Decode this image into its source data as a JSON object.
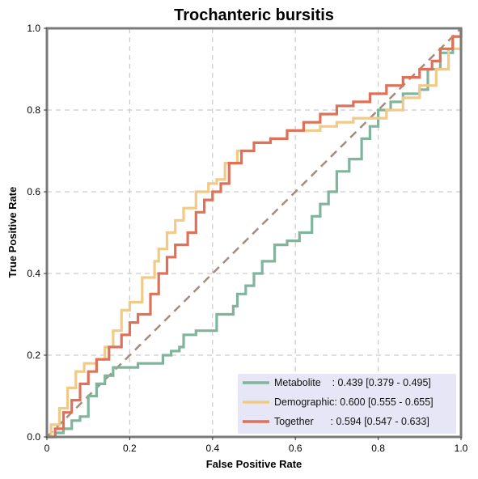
{
  "colors": {
    "metabolite": "#80b59c",
    "demographic": "#f0ca86",
    "together": "#df7158",
    "chance": "#a88a7c",
    "legend_bg": "#e6e6f6",
    "frame": "#7a7a7a",
    "grid": "#cccccc"
  },
  "chart_data": {
    "type": "line",
    "title": "Trochanteric bursitis",
    "xlabel": "False Positive Rate",
    "ylabel": "True Positive Rate",
    "xlim": [
      0,
      1
    ],
    "ylim": [
      0,
      1
    ],
    "xticks": [
      "0",
      "0.2",
      "0.4",
      "0.6",
      "0.8",
      "1.0"
    ],
    "yticks": [
      "0.0",
      "0.2",
      "0.4",
      "0.6",
      "0.8",
      "1.0"
    ],
    "grid": true,
    "legend_position": "bottom-right",
    "chance_line": [
      [
        0,
        0
      ],
      [
        1,
        1
      ]
    ],
    "series": [
      {
        "name": "Metabolite",
        "auc_label": "    : 0.439 [0.379 - 0.495]",
        "color_key": "metabolite",
        "points": [
          [
            0,
            0
          ],
          [
            0.02,
            0.01
          ],
          [
            0.04,
            0.02
          ],
          [
            0.06,
            0.04
          ],
          [
            0.08,
            0.05
          ],
          [
            0.1,
            0.1
          ],
          [
            0.12,
            0.13
          ],
          [
            0.14,
            0.15
          ],
          [
            0.16,
            0.17
          ],
          [
            0.2,
            0.17
          ],
          [
            0.22,
            0.18
          ],
          [
            0.26,
            0.18
          ],
          [
            0.28,
            0.2
          ],
          [
            0.3,
            0.21
          ],
          [
            0.32,
            0.22
          ],
          [
            0.33,
            0.25
          ],
          [
            0.36,
            0.26
          ],
          [
            0.4,
            0.26
          ],
          [
            0.41,
            0.3
          ],
          [
            0.45,
            0.32
          ],
          [
            0.46,
            0.35
          ],
          [
            0.48,
            0.37
          ],
          [
            0.5,
            0.4
          ],
          [
            0.52,
            0.43
          ],
          [
            0.55,
            0.47
          ],
          [
            0.58,
            0.48
          ],
          [
            0.61,
            0.5
          ],
          [
            0.64,
            0.54
          ],
          [
            0.66,
            0.57
          ],
          [
            0.68,
            0.6
          ],
          [
            0.7,
            0.65
          ],
          [
            0.73,
            0.68
          ],
          [
            0.76,
            0.73
          ],
          [
            0.78,
            0.76
          ],
          [
            0.8,
            0.8
          ],
          [
            0.83,
            0.82
          ],
          [
            0.86,
            0.84
          ],
          [
            0.9,
            0.85
          ],
          [
            0.92,
            0.9
          ],
          [
            0.95,
            0.94
          ],
          [
            0.98,
            0.98
          ],
          [
            1,
            1
          ]
        ]
      },
      {
        "name": "Demographic",
        "auc_label": ": 0.600 [0.555 - 0.655]",
        "color_key": "demographic",
        "points": [
          [
            0,
            0
          ],
          [
            0.01,
            0.03
          ],
          [
            0.03,
            0.07
          ],
          [
            0.05,
            0.12
          ],
          [
            0.07,
            0.16
          ],
          [
            0.09,
            0.18
          ],
          [
            0.12,
            0.19
          ],
          [
            0.14,
            0.22
          ],
          [
            0.16,
            0.26
          ],
          [
            0.18,
            0.31
          ],
          [
            0.2,
            0.33
          ],
          [
            0.23,
            0.39
          ],
          [
            0.26,
            0.43
          ],
          [
            0.27,
            0.46
          ],
          [
            0.29,
            0.5
          ],
          [
            0.31,
            0.53
          ],
          [
            0.33,
            0.56
          ],
          [
            0.36,
            0.6
          ],
          [
            0.39,
            0.62
          ],
          [
            0.41,
            0.63
          ],
          [
            0.43,
            0.67
          ],
          [
            0.46,
            0.7
          ],
          [
            0.5,
            0.72
          ],
          [
            0.54,
            0.73
          ],
          [
            0.58,
            0.75
          ],
          [
            0.62,
            0.75
          ],
          [
            0.66,
            0.76
          ],
          [
            0.7,
            0.77
          ],
          [
            0.74,
            0.78
          ],
          [
            0.78,
            0.78
          ],
          [
            0.82,
            0.8
          ],
          [
            0.86,
            0.83
          ],
          [
            0.9,
            0.86
          ],
          [
            0.94,
            0.9
          ],
          [
            0.97,
            0.95
          ],
          [
            1,
            1
          ]
        ]
      },
      {
        "name": "Together",
        "auc_label": "      : 0.594 [0.547 - 0.633]",
        "color_key": "together",
        "points": [
          [
            0,
            0
          ],
          [
            0.02,
            0.02
          ],
          [
            0.04,
            0.06
          ],
          [
            0.06,
            0.09
          ],
          [
            0.08,
            0.13
          ],
          [
            0.1,
            0.16
          ],
          [
            0.12,
            0.19
          ],
          [
            0.15,
            0.22
          ],
          [
            0.18,
            0.25
          ],
          [
            0.2,
            0.28
          ],
          [
            0.22,
            0.3
          ],
          [
            0.25,
            0.35
          ],
          [
            0.27,
            0.4
          ],
          [
            0.29,
            0.44
          ],
          [
            0.31,
            0.47
          ],
          [
            0.34,
            0.5
          ],
          [
            0.36,
            0.55
          ],
          [
            0.38,
            0.58
          ],
          [
            0.4,
            0.6
          ],
          [
            0.42,
            0.62
          ],
          [
            0.44,
            0.67
          ],
          [
            0.47,
            0.7
          ],
          [
            0.5,
            0.72
          ],
          [
            0.54,
            0.73
          ],
          [
            0.58,
            0.75
          ],
          [
            0.62,
            0.77
          ],
          [
            0.66,
            0.79
          ],
          [
            0.7,
            0.81
          ],
          [
            0.74,
            0.82
          ],
          [
            0.78,
            0.84
          ],
          [
            0.82,
            0.86
          ],
          [
            0.86,
            0.88
          ],
          [
            0.9,
            0.9
          ],
          [
            0.93,
            0.92
          ],
          [
            0.95,
            0.95
          ],
          [
            0.98,
            0.98
          ],
          [
            1,
            1
          ]
        ]
      }
    ]
  }
}
